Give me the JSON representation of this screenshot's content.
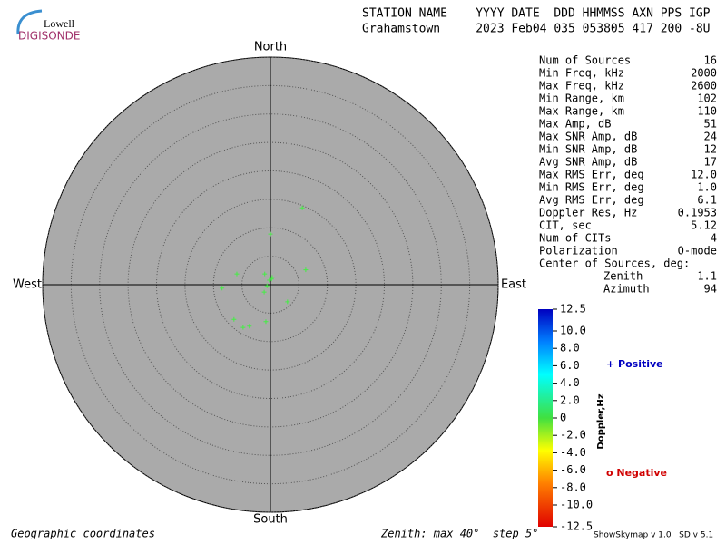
{
  "header": {
    "logo_top": "Lowell",
    "logo_bottom": "DIGISONDE",
    "columns": "STATION NAME    YYYY DATE  DDD HHMMSS AXN PPS IGP",
    "values": "Grahamstown     2023 Feb04 035 053805 417 200 -8U"
  },
  "stats": {
    "rows": [
      [
        "Num of Sources",
        "16"
      ],
      [
        "Min Freq, kHz",
        "2000"
      ],
      [
        "Max Freq, kHz",
        "2600"
      ],
      [
        "Min Range, km",
        "102"
      ],
      [
        "Max Range, km",
        "110"
      ],
      [
        "Max Amp, dB",
        "51"
      ],
      [
        "Max SNR Amp, dB",
        "24"
      ],
      [
        "Min SNR Amp, dB",
        "12"
      ],
      [
        "Avg SNR Amp, dB",
        "17"
      ],
      [
        "Max RMS Err, deg",
        "12.0"
      ],
      [
        "Min RMS Err, deg",
        "1.0"
      ],
      [
        "Avg RMS Err, deg",
        "6.1"
      ],
      [
        "Doppler Res, Hz",
        "0.1953"
      ],
      [
        "CIT, sec",
        "5.12"
      ],
      [
        "Num of CITs",
        "4"
      ],
      [
        "Polarization",
        "O-mode"
      ]
    ],
    "center_label": "Center of Sources, deg:",
    "center_rows": [
      [
        "Zenith",
        "1.1"
      ],
      [
        "Azimuth",
        "94"
      ]
    ]
  },
  "chart_data": {
    "type": "skymap",
    "directions": {
      "north": "North",
      "south": "South",
      "east": "East",
      "west": "West"
    },
    "x": [
      5.6,
      0,
      6.2,
      -5.9,
      -1.0,
      0.3,
      -0.2,
      -0.6,
      -1.1,
      -8.5,
      3.0,
      -6.4,
      -0.8,
      -4.8,
      -3.7,
      0.2
    ],
    "y": [
      13.5,
      8.9,
      2.6,
      1.9,
      1.9,
      1.3,
      0.8,
      -0.2,
      -1.3,
      -0.6,
      -3.0,
      -6.1,
      -6.5,
      -7.5,
      -7.3,
      1.0
    ],
    "color": "#44ee44",
    "rlim": [
      0,
      40
    ],
    "rticks": [
      5,
      10,
      15,
      20,
      25,
      30,
      35,
      40
    ],
    "footer_left": "Geographic coordinates",
    "footer_right": "Zenith: max 40°  step 5°",
    "colorbar": {
      "label": "Doppler,Hz",
      "lim": [
        -12.5,
        12.5
      ],
      "ticks": [
        12.5,
        {
          "value": 10,
          "label": "10.0"
        },
        {
          "value": 8,
          "label": "8.0"
        },
        {
          "value": 6,
          "label": "6.0"
        },
        {
          "value": 4,
          "label": "4.0"
        },
        {
          "value": 2,
          "label": "2.0"
        },
        0,
        {
          "value": -2,
          "label": "-2.0"
        },
        {
          "value": -4,
          "label": "-4.0"
        },
        {
          "value": -6,
          "label": "-6.0"
        },
        {
          "value": -8,
          "label": "-8.0"
        },
        {
          "value": -10,
          "label": "-10.0"
        },
        -12.5
      ],
      "positive": "+ Positive",
      "negative": "o Negative"
    }
  },
  "version": "ShowSkymap v 1.0   SD v 5.1"
}
